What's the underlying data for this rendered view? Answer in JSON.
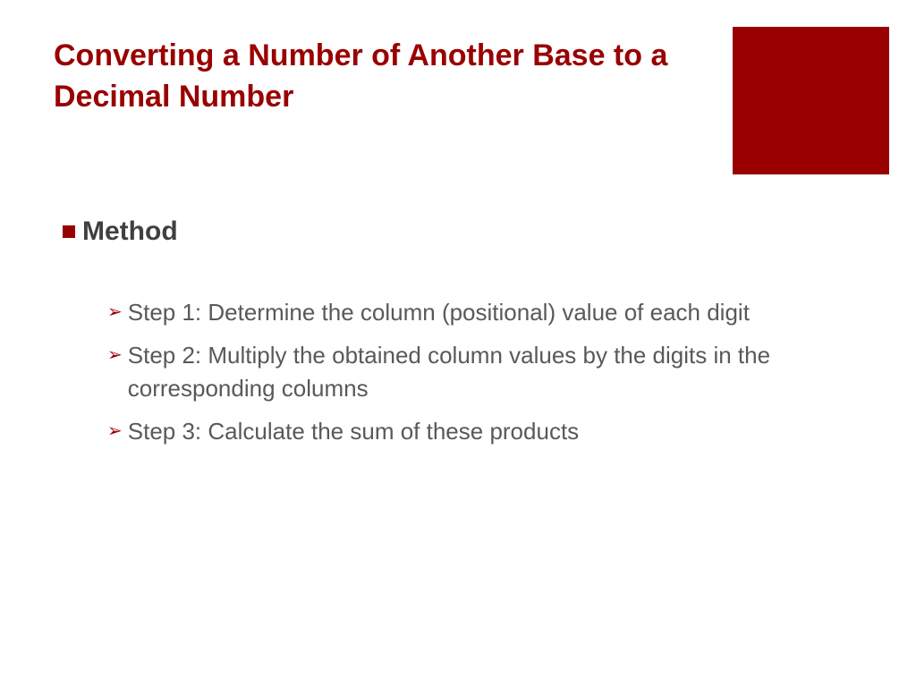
{
  "colors": {
    "brand": "#990000",
    "title_text": "#990000",
    "body_text": "#595959",
    "heading_text": "#404040",
    "background": "#ffffff"
  },
  "decor": {
    "square_color": "#990000",
    "square_width": 175,
    "square_height": 165
  },
  "typography": {
    "title_fontsize": 34,
    "method_fontsize": 30,
    "step_fontsize": 26,
    "font_family": "Century Gothic"
  },
  "title": "Converting a Number of Another Base to a Decimal Number",
  "method_label": "Method",
  "bullets": {
    "square_icon": "square-bullet",
    "arrow_icon": "arrow-right-outline"
  },
  "steps": [
    "Step 1: Determine the column (positional) value of each digit",
    "Step 2: Multiply the obtained column values by the digits in the corresponding columns",
    "Step 3: Calculate the sum of these products"
  ]
}
